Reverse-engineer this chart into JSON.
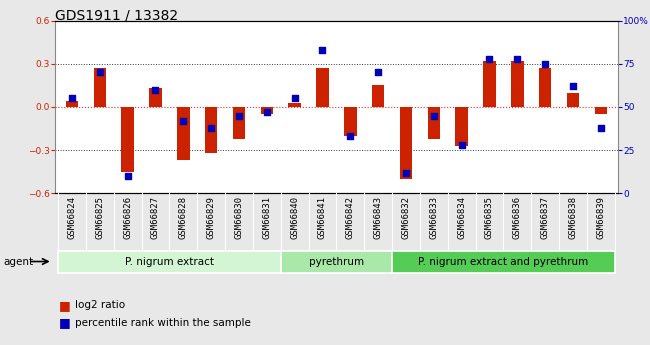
{
  "title": "GDS1911 / 13382",
  "samples": [
    "GSM66824",
    "GSM66825",
    "GSM66826",
    "GSM66827",
    "GSM66828",
    "GSM66829",
    "GSM66830",
    "GSM66831",
    "GSM66840",
    "GSM66841",
    "GSM66842",
    "GSM66843",
    "GSM66832",
    "GSM66833",
    "GSM66834",
    "GSM66835",
    "GSM66836",
    "GSM66837",
    "GSM66838",
    "GSM66839"
  ],
  "log2_ratio": [
    0.04,
    0.27,
    -0.45,
    0.13,
    -0.37,
    -0.32,
    -0.22,
    -0.05,
    0.03,
    0.27,
    -0.2,
    0.15,
    -0.5,
    -0.22,
    -0.27,
    0.32,
    0.32,
    0.27,
    0.1,
    -0.05
  ],
  "percentile": [
    55,
    70,
    10,
    60,
    42,
    38,
    45,
    47,
    55,
    83,
    33,
    70,
    12,
    45,
    28,
    78,
    78,
    75,
    62,
    38
  ],
  "groups": [
    {
      "label": "P. nigrum extract",
      "start": 0,
      "end": 7,
      "color": "#d4f5d4"
    },
    {
      "label": "pyrethrum",
      "start": 8,
      "end": 11,
      "color": "#aae8aa"
    },
    {
      "label": "P. nigrum extract and pyrethrum",
      "start": 12,
      "end": 19,
      "color": "#55cc55"
    }
  ],
  "ylim_left": [
    -0.6,
    0.6
  ],
  "ylim_right": [
    0,
    100
  ],
  "bar_color": "#cc2200",
  "dot_color": "#0000bb",
  "zero_line_color": "#dd3333",
  "grid_color": "#333333",
  "background_color": "#e8e8e8",
  "plot_bg": "#ffffff",
  "bar_width": 0.45,
  "dot_size": 18,
  "yticks_left": [
    -0.6,
    -0.3,
    0.0,
    0.3,
    0.6
  ],
  "yticks_right": [
    0,
    25,
    50,
    75,
    100
  ],
  "ytick_labels_right": [
    "0",
    "25",
    "50",
    "75",
    "100%"
  ],
  "legend_red": "log2 ratio",
  "legend_blue": "percentile rank within the sample",
  "agent_label": "agent",
  "title_fontsize": 10,
  "tick_fontsize": 6.5,
  "group_fontsize": 7.5,
  "legend_fontsize": 7.5
}
